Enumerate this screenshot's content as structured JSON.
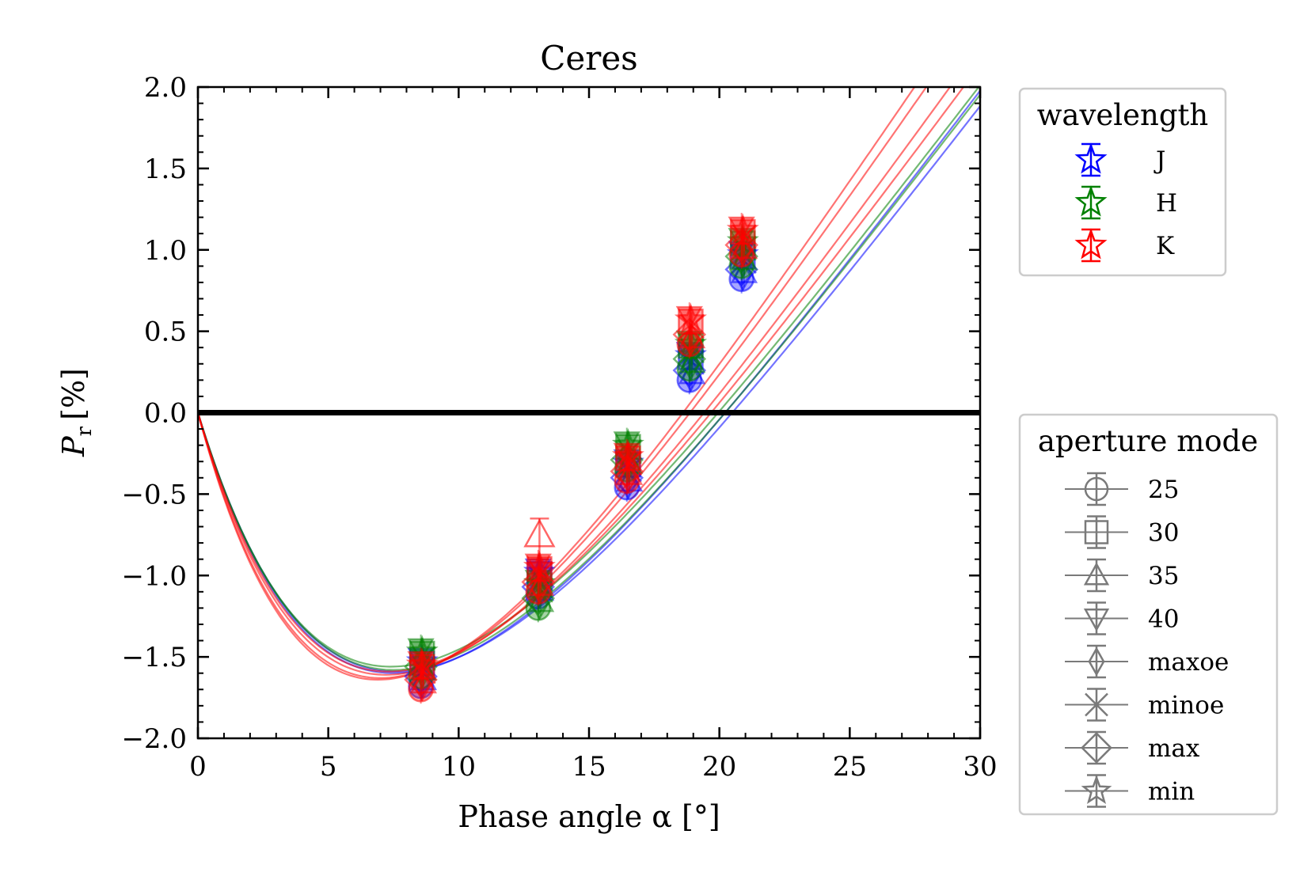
{
  "chart_data": {
    "type": "scatter",
    "title": "Ceres",
    "xlabel": "Phase angle α [°]",
    "ylabel_symbol": "P",
    "ylabel_subscript": "r",
    "ylabel_unit": "[%]",
    "xlim": [
      0,
      30
    ],
    "ylim": [
      -2.0,
      2.0
    ],
    "x_ticks": [
      0,
      5,
      10,
      15,
      20,
      25,
      30
    ],
    "x_tick_labels": [
      "0",
      "5",
      "10",
      "15",
      "20",
      "25",
      "30"
    ],
    "y_ticks": [
      2.0,
      1.5,
      1.0,
      0.5,
      0.0,
      -0.5,
      -1.0,
      -1.5,
      -2.0
    ],
    "y_tick_labels": [
      "2.0",
      "1.5",
      "1.0",
      "0.5",
      "0.0",
      "−0.5",
      "−1.0",
      "−1.5",
      "−2.0"
    ],
    "reference_line_y": 0.0,
    "grid": false,
    "legend_wavelength": {
      "title": "wavelength",
      "placement": "upper-right-outside",
      "entries": [
        {
          "label": "J",
          "color": "#0000ff"
        },
        {
          "label": "H",
          "color": "#008000"
        },
        {
          "label": "K",
          "color": "#ff0000"
        }
      ]
    },
    "legend_aperture": {
      "title": "aperture mode",
      "placement": "lower-right-outside",
      "entries": [
        {
          "label": "25",
          "marker": "circle"
        },
        {
          "label": "30",
          "marker": "square"
        },
        {
          "label": "35",
          "marker": "triangle-up"
        },
        {
          "label": "40",
          "marker": "triangle-down"
        },
        {
          "label": "maxoe",
          "marker": "thin-diamond"
        },
        {
          "label": "minoe",
          "marker": "x"
        },
        {
          "label": "max",
          "marker": "diamond"
        },
        {
          "label": "min",
          "marker": "star"
        }
      ]
    },
    "series": [
      {
        "wavelength": "J",
        "color": "#0000ff",
        "x": [
          8.6,
          13.1,
          16.5,
          18.9,
          20.9
        ],
        "y": [
          -1.6,
          -1.05,
          -0.38,
          0.28,
          0.9
        ]
      },
      {
        "wavelength": "H",
        "color": "#008000",
        "x": [
          8.6,
          13.1,
          16.5,
          18.9,
          20.9
        ],
        "y": [
          -1.54,
          -1.12,
          -0.27,
          0.35,
          0.98
        ]
      },
      {
        "wavelength": "K",
        "color": "#ff0000",
        "x": [
          8.6,
          13.1,
          16.5,
          18.9,
          20.9
        ],
        "y": [
          -1.62,
          -1.02,
          -0.34,
          0.5,
          1.05
        ]
      }
    ],
    "outlier": {
      "wavelength": "K",
      "aperture": "35",
      "x": 13.1,
      "y": -0.75
    },
    "fit_curves": [
      {
        "color": "#0000ff",
        "a_min": 7.5,
        "p_min": -1.6,
        "inversion": 17.8
      },
      {
        "color": "#0000ff",
        "a_min": 7.6,
        "p_min": -1.59,
        "inversion": 17.9
      },
      {
        "color": "#008000",
        "a_min": 7.4,
        "p_min": -1.56,
        "inversion": 17.6
      },
      {
        "color": "#008000",
        "a_min": 7.5,
        "p_min": -1.58,
        "inversion": 17.7
      },
      {
        "color": "#ff0000",
        "a_min": 7.0,
        "p_min": -1.63,
        "inversion": 17.3
      },
      {
        "color": "#ff0000",
        "a_min": 7.2,
        "p_min": -1.61,
        "inversion": 17.4
      },
      {
        "color": "#ff0000",
        "a_min": 7.3,
        "p_min": -1.59,
        "inversion": 17.5
      },
      {
        "color": "#ff0000",
        "a_min": 6.9,
        "p_min": -1.64,
        "inversion": 17.35
      }
    ]
  }
}
